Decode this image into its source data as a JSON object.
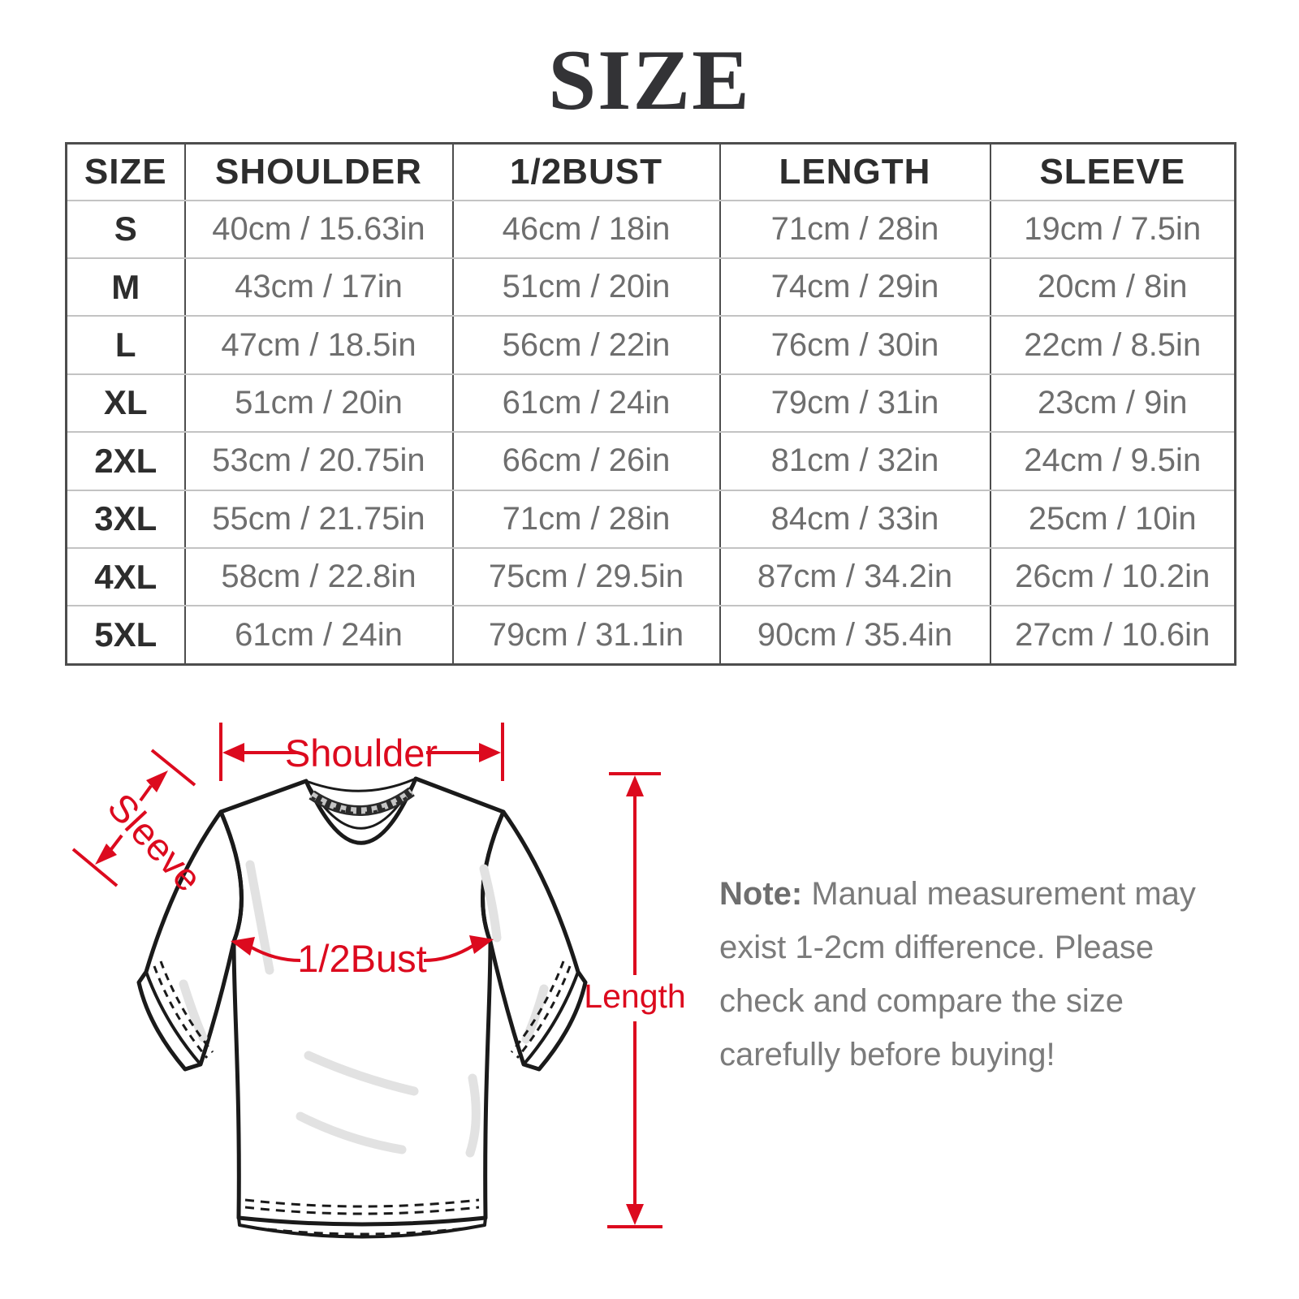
{
  "title": "SIZE",
  "colors": {
    "accent_red": "#dc0a1e",
    "header_text": "#2d2d2d",
    "cell_text": "#6e6e6e",
    "note_text": "#7b7b7b",
    "grid_vertical": "#4d4d4d",
    "grid_horizontal": "#c3c3c3"
  },
  "table": {
    "headers": [
      "SIZE",
      "SHOULDER",
      "1/2BUST",
      "LENGTH",
      "SLEEVE"
    ],
    "rows": [
      [
        "S",
        "40cm / 15.63in",
        "46cm / 18in",
        "71cm / 28in",
        "19cm / 7.5in"
      ],
      [
        "M",
        "43cm / 17in",
        "51cm / 20in",
        "74cm / 29in",
        "20cm / 8in"
      ],
      [
        "L",
        "47cm / 18.5in",
        "56cm / 22in",
        "76cm / 30in",
        "22cm / 8.5in"
      ],
      [
        "XL",
        "51cm / 20in",
        "61cm / 24in",
        "79cm / 31in",
        "23cm / 9in"
      ],
      [
        "2XL",
        "53cm / 20.75in",
        "66cm / 26in",
        "81cm / 32in",
        "24cm / 9.5in"
      ],
      [
        "3XL",
        "55cm / 21.75in",
        "71cm / 28in",
        "84cm / 33in",
        "25cm / 10in"
      ],
      [
        "4XL",
        "58cm / 22.8in",
        "75cm / 29.5in",
        "87cm / 34.2in",
        "26cm / 10.2in"
      ],
      [
        "5XL",
        "61cm / 24in",
        "79cm / 31.1in",
        "90cm / 35.4in",
        "27cm / 10.6in"
      ]
    ]
  },
  "diagram": {
    "labels": {
      "shoulder": "Shoulder",
      "sleeve": "Sleeve",
      "half_bust": "1/2Bust",
      "length": "Length"
    }
  },
  "note": {
    "label": "Note:",
    "lines": [
      "Manual measurement may",
      "exist 1-2cm difference. Please",
      "check and compare the size",
      "carefully before buying!"
    ]
  }
}
